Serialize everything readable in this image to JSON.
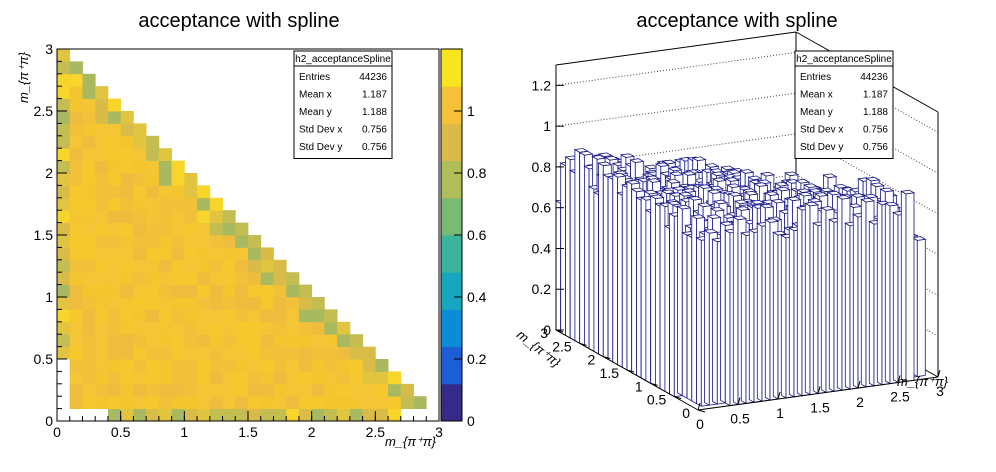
{
  "chart_data": [
    {
      "type": "heatmap",
      "title": "acceptance with spline",
      "xlabel": "m_{π⁺π}",
      "ylabel": "m_{π⁺π}",
      "xlim": [
        0,
        3
      ],
      "ylim": [
        0,
        3
      ],
      "zlim": [
        0,
        1.2
      ],
      "x_ticks": [
        "0",
        "0.5",
        "1",
        "1.5",
        "2",
        "2.5",
        "3"
      ],
      "y_ticks": [
        "0",
        "0.5",
        "1",
        "1.5",
        "2",
        "2.5",
        "3"
      ],
      "z_ticks": [
        "0",
        "0.2",
        "0.4",
        "0.6",
        "0.8",
        "1"
      ],
      "bins_x": 30,
      "bins_y": 30,
      "region": "x + y ≤ 3",
      "typical_value": 1.0,
      "stats": {
        "name": "h2_acceptanceSpline",
        "rows": [
          {
            "label": "Entries",
            "value": "44236"
          },
          {
            "label": "Mean x",
            "value": "1.187"
          },
          {
            "label": "Mean y",
            "value": "1.188"
          },
          {
            "label": "Std Dev x",
            "value": "0.756"
          },
          {
            "label": "Std Dev y",
            "value": "0.756"
          }
        ]
      }
    },
    {
      "type": "lego",
      "title": "acceptance with spline",
      "xlabel": "m_{π⁺π}",
      "ylabel": "m_{π⁺π}",
      "xlim": [
        0,
        3
      ],
      "ylim": [
        0,
        3
      ],
      "zlim": [
        0,
        1.3
      ],
      "x_ticks": [
        "0",
        "0.5",
        "1",
        "1.5",
        "2",
        "2.5",
        "3"
      ],
      "y_ticks": [
        "0",
        "0.5",
        "1",
        "1.5",
        "2",
        "2.5",
        "3"
      ],
      "z_ticks": [
        "0",
        "0.2",
        "0.4",
        "0.6",
        "0.8",
        "1",
        "1.2"
      ],
      "stats": {
        "name": "h2_acceptanceSpline",
        "rows": [
          {
            "label": "Entries",
            "value": "44236"
          },
          {
            "label": "Mean x",
            "value": "1.187"
          },
          {
            "label": "Mean y",
            "value": "1.188"
          },
          {
            "label": "Std Dev x",
            "value": "0.756"
          },
          {
            "label": "Std Dev y",
            "value": "0.756"
          }
        ]
      }
    }
  ],
  "colors": {
    "bin_fill": "#f4c535",
    "bar_edge": "#1a1a8c",
    "palette": [
      "#352a87",
      "#1b5ed6",
      "#0c8bd8",
      "#17a6c0",
      "#38b59a",
      "#78bb74",
      "#b0bd58",
      "#dbba4a",
      "#f6c137",
      "#f9e51d"
    ]
  }
}
